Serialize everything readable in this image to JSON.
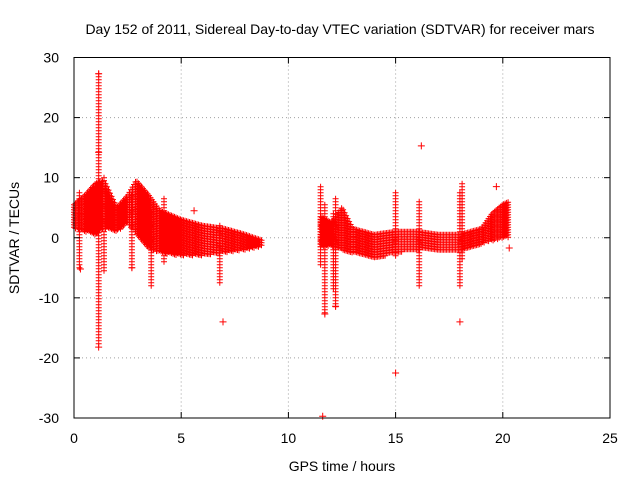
{
  "chart_data": {
    "type": "scatter",
    "title": "Day 152 of 2011, Sidereal Day-to-day VTEC variation (SDTVAR) for receiver mars",
    "xlabel": "GPS time / hours",
    "ylabel": "SDTVAR / TECUs",
    "xlim": [
      0,
      25
    ],
    "ylim": [
      -30,
      30
    ],
    "xticks": [
      0,
      5,
      10,
      15,
      20,
      25
    ],
    "yticks": [
      -30,
      -20,
      -10,
      0,
      10,
      20,
      30
    ],
    "xtick_labels": [
      "0",
      "5",
      "10",
      "15",
      "20",
      "25"
    ],
    "ytick_labels": [
      "-30",
      "-20",
      "-10",
      "0",
      "10",
      "20",
      "30"
    ],
    "grid": true,
    "marker": "+",
    "color": "#ff0000",
    "series": [
      {
        "name": "SDTVAR",
        "band_segments": [
          {
            "x": [
              0.0,
              0.5,
              1.0,
              1.4,
              2.0,
              2.5,
              2.9,
              3.5,
              4.0,
              5.0,
              6.0,
              7.0,
              8.0,
              8.8
            ],
            "upper": [
              5.5,
              7.0,
              9.0,
              9.5,
              5.0,
              7.0,
              9.5,
              7.0,
              4.5,
              3.0,
              2.0,
              1.5,
              0.5,
              -0.5
            ],
            "lower": [
              1.5,
              1.0,
              0.5,
              1.5,
              1.0,
              2.5,
              0.5,
              -2.0,
              -2.5,
              -3.0,
              -3.0,
              -2.5,
              -2.0,
              -1.5
            ]
          },
          {
            "x": [
              11.5,
              12.0,
              12.5,
              13.0,
              14.0,
              15.0,
              16.0,
              17.0,
              18.0,
              19.0,
              19.5,
              20.0,
              20.3
            ],
            "upper": [
              3.5,
              2.5,
              5.0,
              1.5,
              0.5,
              1.0,
              1.0,
              0.5,
              0.5,
              1.5,
              4.0,
              5.5,
              6.0
            ],
            "lower": [
              -1.5,
              -1.5,
              -2.0,
              -2.5,
              -3.5,
              -2.5,
              -2.0,
              -2.0,
              -2.0,
              -1.0,
              -0.5,
              0.0,
              0.0
            ]
          }
        ],
        "spikes": [
          {
            "x": 1.15,
            "y_min": -18.0,
            "y_max": 27.3
          },
          {
            "x": 0.25,
            "y_min": -5.0,
            "y_max": 7.5
          },
          {
            "x": 1.4,
            "y_min": -5.5,
            "y_max": 10.0
          },
          {
            "x": 2.7,
            "y_min": -5.0,
            "y_max": 7.0
          },
          {
            "x": 3.6,
            "y_min": -8.0,
            "y_max": 4.0
          },
          {
            "x": 4.2,
            "y_min": -4.0,
            "y_max": 6.5
          },
          {
            "x": 6.8,
            "y_min": -7.5,
            "y_max": 2.0
          },
          {
            "x": 11.5,
            "y_min": -4.5,
            "y_max": 8.5
          },
          {
            "x": 11.7,
            "y_min": -12.5,
            "y_max": 5.5
          },
          {
            "x": 12.1,
            "y_min": -8.5,
            "y_max": 4.0
          },
          {
            "x": 12.2,
            "y_min": -11.5,
            "y_max": 6.5
          },
          {
            "x": 15.0,
            "y_min": -3.0,
            "y_max": 7.5
          },
          {
            "x": 16.1,
            "y_min": -8.0,
            "y_max": 6.0
          },
          {
            "x": 18.0,
            "y_min": -8.0,
            "y_max": 7.5
          },
          {
            "x": 18.1,
            "y_min": -3.5,
            "y_max": 9.0
          }
        ],
        "outliers": [
          {
            "x": 1.15,
            "y": 27.3
          },
          {
            "x": 1.15,
            "y": 14.2
          },
          {
            "x": 1.15,
            "y": -18.2
          },
          {
            "x": 16.2,
            "y": 15.3
          },
          {
            "x": 11.6,
            "y": -29.7
          },
          {
            "x": 15.0,
            "y": -22.5
          },
          {
            "x": 6.95,
            "y": -14.0
          },
          {
            "x": 18.0,
            "y": -14.0
          },
          {
            "x": 11.7,
            "y": -12.7
          },
          {
            "x": 12.2,
            "y": -11.4
          },
          {
            "x": 19.7,
            "y": 8.5
          },
          {
            "x": 5.6,
            "y": 4.5
          },
          {
            "x": 0.3,
            "y": -5.2
          },
          {
            "x": 2.7,
            "y": -5.0
          },
          {
            "x": 20.3,
            "y": -1.7
          }
        ]
      }
    ]
  }
}
